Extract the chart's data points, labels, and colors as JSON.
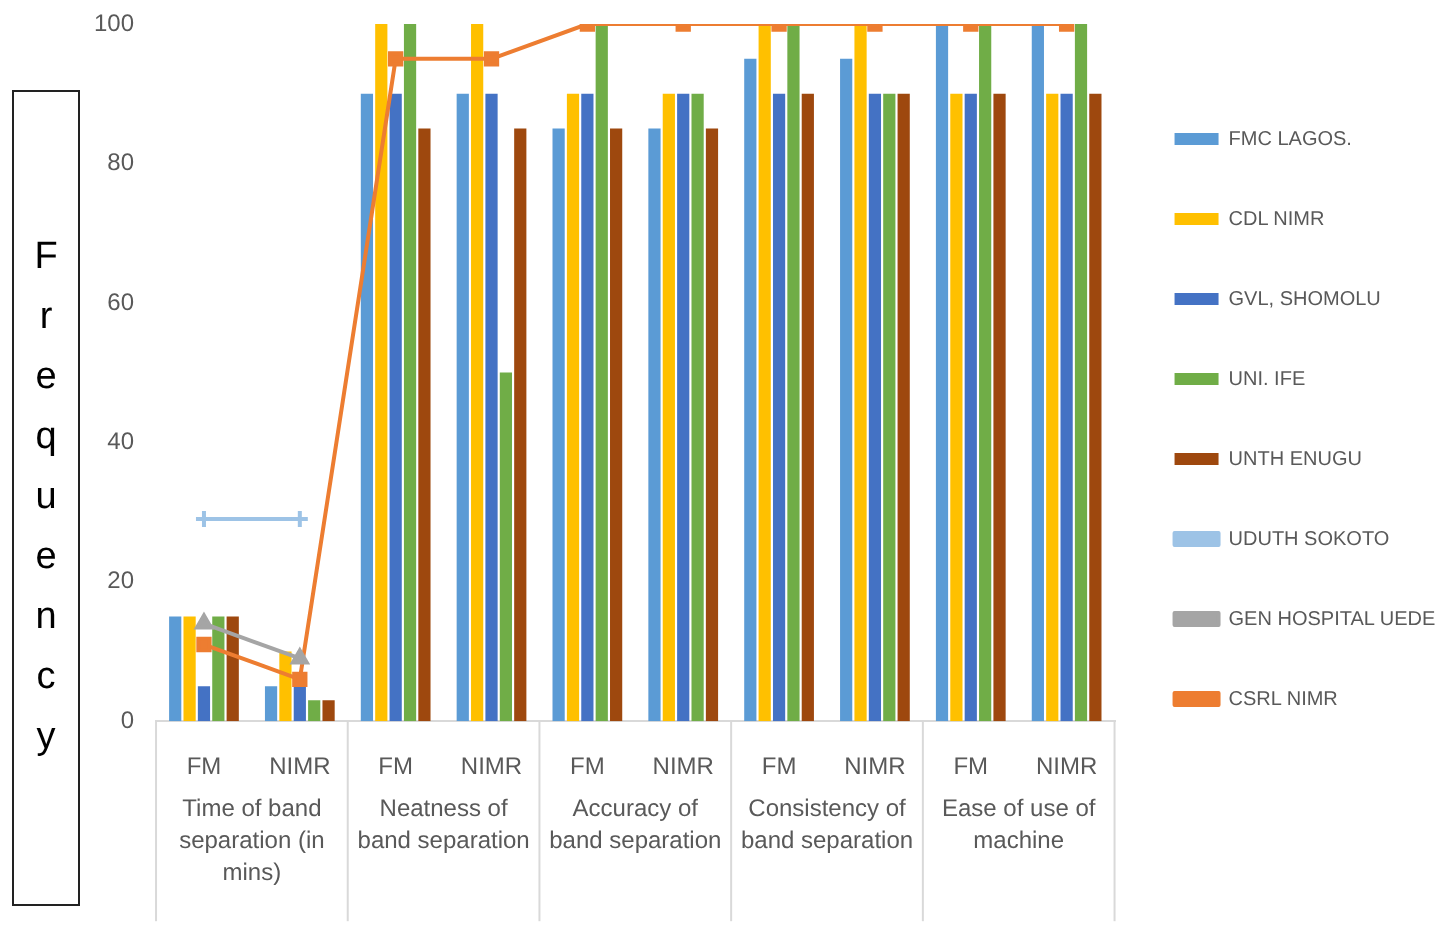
{
  "chart_data": {
    "type": "bar",
    "ylabel": "Frequency",
    "categories": [
      "FM",
      "NIMR",
      "FM",
      "NIMR",
      "FM",
      "NIMR",
      "FM",
      "NIMR",
      "FM",
      "NIMR"
    ],
    "annotations": [
      "Time of band separation (in mins)",
      "Neatness of band separation",
      "Accuracy of band separation",
      "Consistency of band separation",
      "Ease of use of machine"
    ],
    "series": [
      {
        "name": "FMC LAGOS.",
        "color": "#5b9bd5",
        "values": [
          15,
          5,
          90,
          90,
          85,
          85,
          95,
          95,
          100,
          100
        ]
      },
      {
        "name": "CDL NIMR",
        "color": "#ffc000",
        "values": [
          15,
          10,
          100,
          100,
          90,
          90,
          100,
          100,
          90,
          90
        ]
      },
      {
        "name": "GVL, SHOMOLU",
        "color": "#4472c4",
        "values": [
          5,
          5,
          90,
          90,
          90,
          90,
          90,
          90,
          90,
          90
        ]
      },
      {
        "name": "UNI. IFE",
        "color": "#70ad47",
        "values": [
          15,
          3,
          100,
          50,
          100,
          90,
          100,
          90,
          100,
          100
        ]
      },
      {
        "name": "UNTH ENUGU",
        "color": "#9e480e",
        "values": [
          15,
          3,
          85,
          85,
          85,
          85,
          90,
          90,
          90,
          90
        ]
      },
      {
        "name": "UDUTH SOKOTO",
        "type": "line",
        "marker": "cross",
        "color": "#9dc3e6",
        "values": [
          29,
          29,
          null,
          null,
          null,
          null,
          null,
          null,
          null,
          null
        ]
      },
      {
        "name": "GEN HOSPITAL UEDE",
        "type": "line",
        "marker": "triangle",
        "color": "#a5a5a5",
        "values": [
          14,
          9,
          null,
          null,
          null,
          null,
          null,
          null,
          null,
          null
        ]
      },
      {
        "name": "CSRL NIMR",
        "type": "line",
        "marker": "square",
        "color": "#ed7d31",
        "values": [
          11,
          6,
          95,
          95,
          100,
          100,
          100,
          100,
          100,
          100
        ]
      }
    ],
    "ylim": [
      0,
      100
    ],
    "yticks": [
      0,
      20,
      40,
      60,
      80,
      100
    ],
    "grid": false,
    "legend": "right"
  }
}
